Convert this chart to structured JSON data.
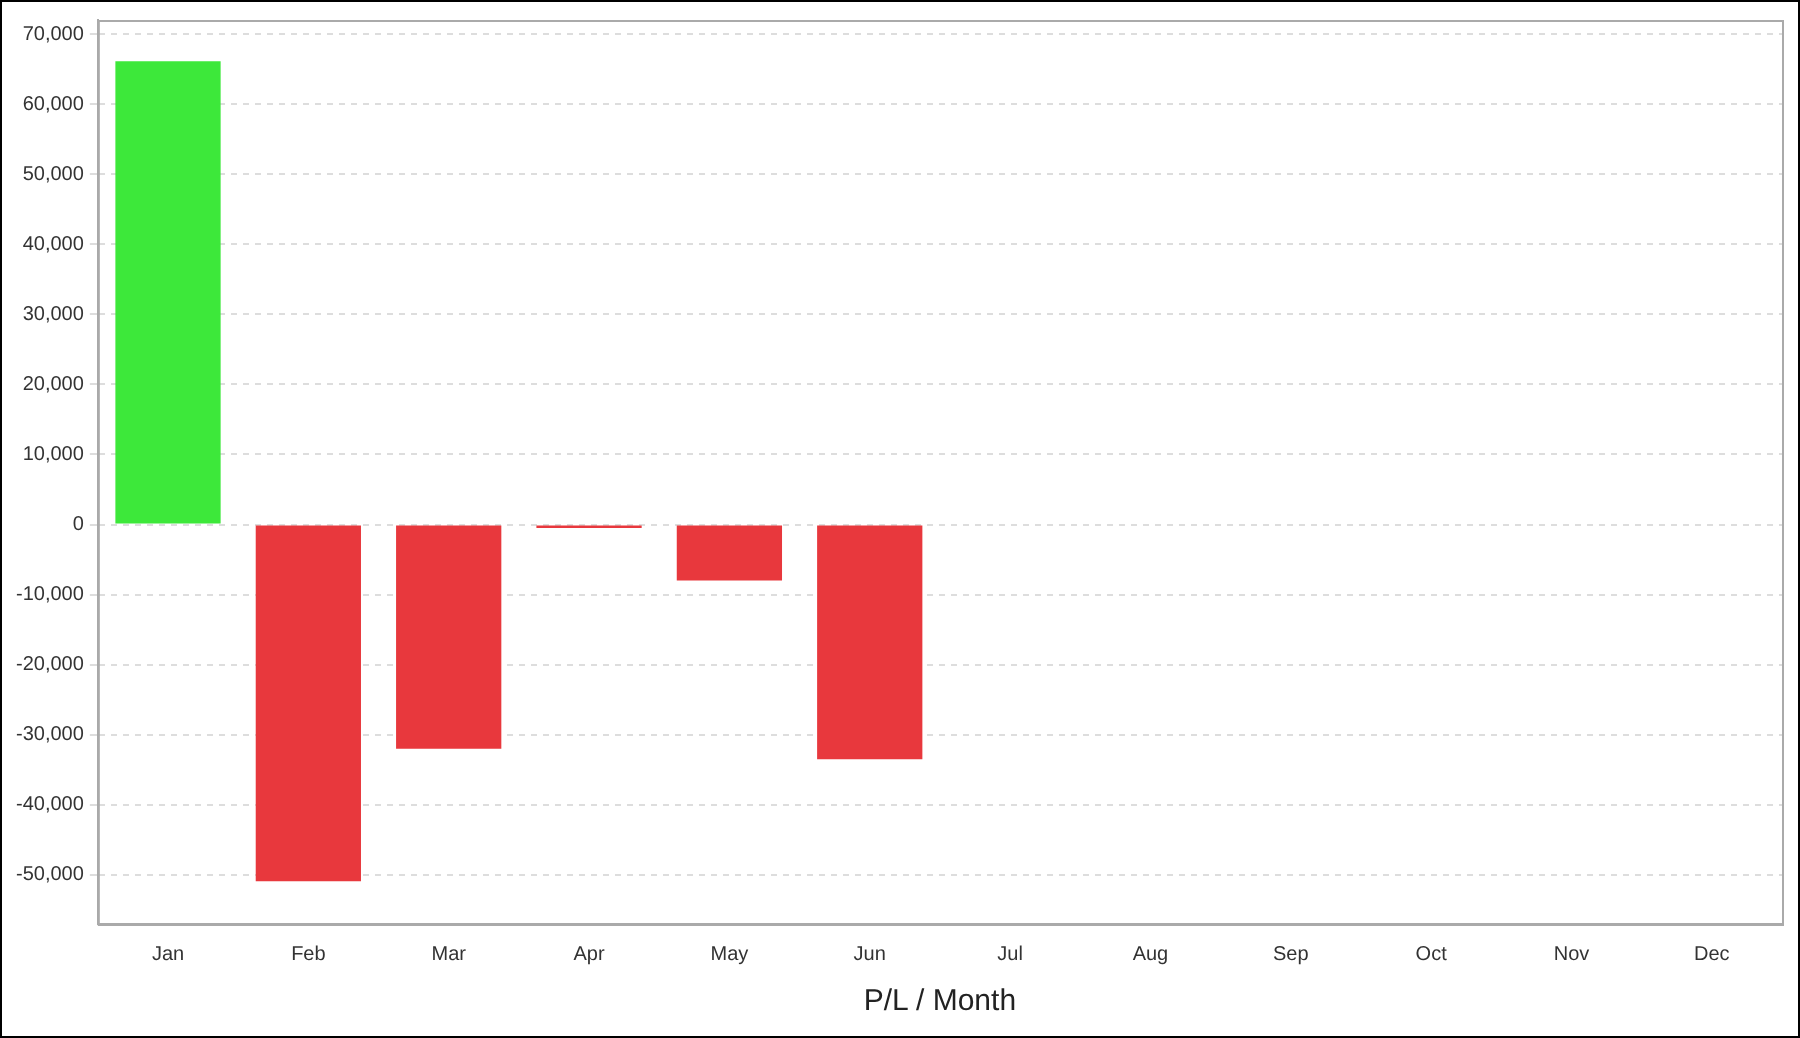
{
  "chart_data": {
    "type": "bar",
    "xlabel": "P/L / Month",
    "categories": [
      "Jan",
      "Feb",
      "Mar",
      "Apr",
      "May",
      "Jun",
      "Jul",
      "Aug",
      "Sep",
      "Oct",
      "Nov",
      "Dec"
    ],
    "values": [
      66100,
      -50900,
      -32000,
      -500,
      -8000,
      -33500,
      null,
      null,
      null,
      null,
      null,
      null
    ],
    "colors": [
      "#3de83a",
      "#e8383d",
      "#e8383d",
      "#e8383d",
      "#e8383d",
      "#e8383d",
      "#e8383d",
      "#e8383d",
      "#e8383d",
      "#e8383d",
      "#e8383d",
      "#e8383d"
    ],
    "ylim": [
      -57000,
      72000
    ],
    "yticks": [
      {
        "value": -50000,
        "label": "-50,000"
      },
      {
        "value": -40000,
        "label": "-40,000"
      },
      {
        "value": -30000,
        "label": "-30,000"
      },
      {
        "value": -20000,
        "label": "-20,000"
      },
      {
        "value": -10000,
        "label": "-10,000"
      },
      0,
      {
        "value": 10000,
        "label": "10,000"
      },
      {
        "value": 20000,
        "label": "20,000"
      },
      {
        "value": 30000,
        "label": "30,000"
      },
      {
        "value": 40000,
        "label": "40,000"
      },
      {
        "value": 50000,
        "label": "50,000"
      },
      {
        "value": 60000,
        "label": "60,000"
      },
      {
        "value": 70000,
        "label": "70,000"
      }
    ],
    "grid": "y",
    "legend": false
  }
}
